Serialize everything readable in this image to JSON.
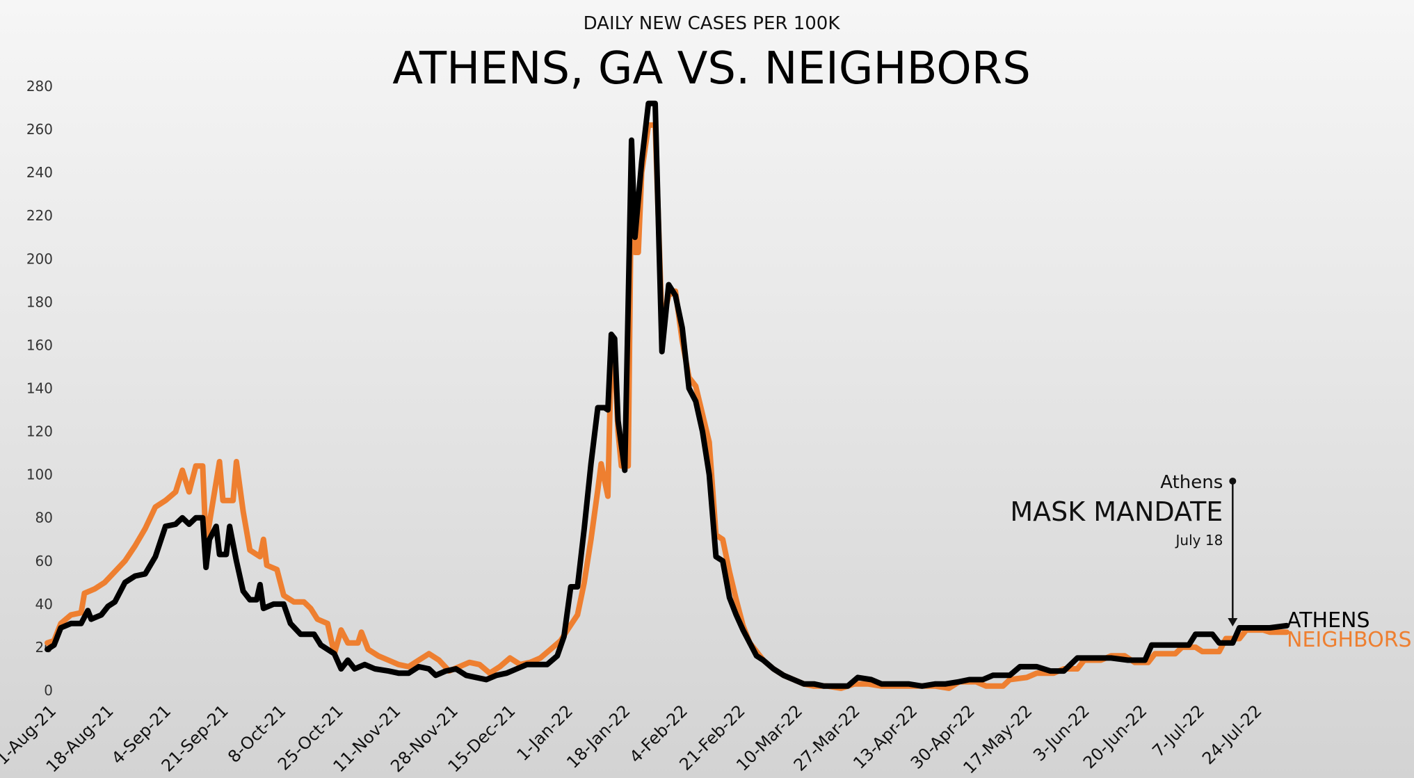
{
  "chart_data": {
    "type": "line",
    "subtitle": "DAILY NEW CASES PER 100K",
    "title": "ATHENS, GA VS. NEIGHBORS",
    "xlabel": "",
    "ylabel": "",
    "ylim": [
      0,
      280
    ],
    "yticks": [
      0,
      20,
      40,
      60,
      80,
      100,
      120,
      140,
      160,
      180,
      200,
      220,
      240,
      260,
      280
    ],
    "xtick_labels": [
      "1-Aug-21",
      "18-Aug-21",
      "4-Sep-21",
      "21-Sep-21",
      "8-Oct-21",
      "25-Oct-21",
      "11-Nov-21",
      "28-Nov-21",
      "15-Dec-21",
      "1-Jan-22",
      "18-Jan-22",
      "4-Feb-22",
      "21-Feb-22",
      "10-Mar-22",
      "27-Mar-22",
      "13-Apr-22",
      "30-Apr-22",
      "17-May-22",
      "3-Jun-22",
      "20-Jun-22",
      "7-Jul-22",
      "24-Jul-22"
    ],
    "x_start": "2021-08-01",
    "x_end": "2022-08-03",
    "grid": false,
    "legend": "direct labels at right end of lines",
    "series": [
      {
        "name": "ATHENS",
        "color": "#000000",
        "points": [
          [
            "2021-08-01",
            19
          ],
          [
            "2021-08-03",
            21
          ],
          [
            "2021-08-05",
            29
          ],
          [
            "2021-08-08",
            31
          ],
          [
            "2021-08-11",
            31
          ],
          [
            "2021-08-13",
            37
          ],
          [
            "2021-08-14",
            33
          ],
          [
            "2021-08-17",
            35
          ],
          [
            "2021-08-19",
            39
          ],
          [
            "2021-08-21",
            41
          ],
          [
            "2021-08-24",
            50
          ],
          [
            "2021-08-27",
            53
          ],
          [
            "2021-08-30",
            54
          ],
          [
            "2021-09-02",
            62
          ],
          [
            "2021-09-05",
            76
          ],
          [
            "2021-09-08",
            77
          ],
          [
            "2021-09-10",
            80
          ],
          [
            "2021-09-12",
            77
          ],
          [
            "2021-09-14",
            80
          ],
          [
            "2021-09-16",
            80
          ],
          [
            "2021-09-17",
            57
          ],
          [
            "2021-09-18",
            70
          ],
          [
            "2021-09-20",
            76
          ],
          [
            "2021-09-21",
            63
          ],
          [
            "2021-09-23",
            63
          ],
          [
            "2021-09-24",
            76
          ],
          [
            "2021-09-26",
            60
          ],
          [
            "2021-09-28",
            46
          ],
          [
            "2021-09-30",
            42
          ],
          [
            "2021-10-02",
            42
          ],
          [
            "2021-10-03",
            49
          ],
          [
            "2021-10-04",
            38
          ],
          [
            "2021-10-07",
            40
          ],
          [
            "2021-10-10",
            40
          ],
          [
            "2021-10-12",
            31
          ],
          [
            "2021-10-15",
            26
          ],
          [
            "2021-10-19",
            26
          ],
          [
            "2021-10-21",
            21
          ],
          [
            "2021-10-23",
            19
          ],
          [
            "2021-10-25",
            17
          ],
          [
            "2021-10-27",
            10
          ],
          [
            "2021-10-29",
            14
          ],
          [
            "2021-10-31",
            10
          ],
          [
            "2021-11-03",
            12
          ],
          [
            "2021-11-06",
            10
          ],
          [
            "2021-11-10",
            9
          ],
          [
            "2021-11-13",
            8
          ],
          [
            "2021-11-16",
            8
          ],
          [
            "2021-11-19",
            11
          ],
          [
            "2021-11-22",
            10
          ],
          [
            "2021-11-24",
            7
          ],
          [
            "2021-11-27",
            9
          ],
          [
            "2021-11-30",
            10
          ],
          [
            "2021-12-03",
            7
          ],
          [
            "2021-12-06",
            6
          ],
          [
            "2021-12-09",
            5
          ],
          [
            "2021-12-12",
            7
          ],
          [
            "2021-12-15",
            8
          ],
          [
            "2021-12-18",
            10
          ],
          [
            "2021-12-21",
            12
          ],
          [
            "2021-12-24",
            12
          ],
          [
            "2021-12-27",
            12
          ],
          [
            "2021-12-30",
            16
          ],
          [
            "2022-01-01",
            25
          ],
          [
            "2022-01-03",
            48
          ],
          [
            "2022-01-05",
            48
          ],
          [
            "2022-01-07",
            75
          ],
          [
            "2022-01-09",
            105
          ],
          [
            "2022-01-11",
            131
          ],
          [
            "2022-01-13",
            131
          ],
          [
            "2022-01-14",
            130
          ],
          [
            "2022-01-15",
            165
          ],
          [
            "2022-01-16",
            163
          ],
          [
            "2022-01-17",
            125
          ],
          [
            "2022-01-19",
            102
          ],
          [
            "2022-01-21",
            255
          ],
          [
            "2022-01-22",
            210
          ],
          [
            "2022-01-24",
            245
          ],
          [
            "2022-01-26",
            272
          ],
          [
            "2022-01-28",
            272
          ],
          [
            "2022-01-30",
            157
          ],
          [
            "2022-02-01",
            188
          ],
          [
            "2022-02-03",
            183
          ],
          [
            "2022-02-05",
            168
          ],
          [
            "2022-02-07",
            140
          ],
          [
            "2022-02-09",
            134
          ],
          [
            "2022-02-11",
            120
          ],
          [
            "2022-02-13",
            100
          ],
          [
            "2022-02-15",
            62
          ],
          [
            "2022-02-17",
            60
          ],
          [
            "2022-02-19",
            43
          ],
          [
            "2022-02-21",
            35
          ],
          [
            "2022-02-23",
            28
          ],
          [
            "2022-02-25",
            22
          ],
          [
            "2022-02-27",
            16
          ],
          [
            "2022-03-01",
            14
          ],
          [
            "2022-03-04",
            10
          ],
          [
            "2022-03-07",
            7
          ],
          [
            "2022-03-10",
            5
          ],
          [
            "2022-03-13",
            3
          ],
          [
            "2022-03-16",
            3
          ],
          [
            "2022-03-19",
            2
          ],
          [
            "2022-03-22",
            2
          ],
          [
            "2022-03-26",
            2
          ],
          [
            "2022-03-29",
            6
          ],
          [
            "2022-04-02",
            5
          ],
          [
            "2022-04-05",
            3
          ],
          [
            "2022-04-09",
            3
          ],
          [
            "2022-04-13",
            3
          ],
          [
            "2022-04-17",
            2
          ],
          [
            "2022-04-21",
            3
          ],
          [
            "2022-04-24",
            3
          ],
          [
            "2022-04-28",
            4
          ],
          [
            "2022-05-01",
            5
          ],
          [
            "2022-05-05",
            5
          ],
          [
            "2022-05-08",
            7
          ],
          [
            "2022-05-13",
            7
          ],
          [
            "2022-05-16",
            11
          ],
          [
            "2022-05-21",
            11
          ],
          [
            "2022-05-25",
            9
          ],
          [
            "2022-05-29",
            9
          ],
          [
            "2022-06-02",
            15
          ],
          [
            "2022-06-07",
            15
          ],
          [
            "2022-06-12",
            15
          ],
          [
            "2022-06-17",
            14
          ],
          [
            "2022-06-22",
            14
          ],
          [
            "2022-06-24",
            21
          ],
          [
            "2022-07-01",
            21
          ],
          [
            "2022-07-05",
            21
          ],
          [
            "2022-07-07",
            26
          ],
          [
            "2022-07-12",
            26
          ],
          [
            "2022-07-14",
            22
          ],
          [
            "2022-07-18",
            22
          ],
          [
            "2022-07-20",
            29
          ],
          [
            "2022-07-25",
            29
          ],
          [
            "2022-07-29",
            29
          ],
          [
            "2022-08-03",
            30
          ]
        ]
      },
      {
        "name": "NEIGHBORS",
        "color": "#ee7f30",
        "points": [
          [
            "2021-08-01",
            22
          ],
          [
            "2021-08-03",
            23
          ],
          [
            "2021-08-05",
            31
          ],
          [
            "2021-08-08",
            35
          ],
          [
            "2021-08-11",
            36
          ],
          [
            "2021-08-12",
            45
          ],
          [
            "2021-08-15",
            47
          ],
          [
            "2021-08-18",
            50
          ],
          [
            "2021-08-21",
            55
          ],
          [
            "2021-08-24",
            60
          ],
          [
            "2021-08-27",
            67
          ],
          [
            "2021-08-30",
            75
          ],
          [
            "2021-09-02",
            85
          ],
          [
            "2021-09-05",
            88
          ],
          [
            "2021-09-08",
            92
          ],
          [
            "2021-09-10",
            102
          ],
          [
            "2021-09-12",
            92
          ],
          [
            "2021-09-14",
            104
          ],
          [
            "2021-09-16",
            104
          ],
          [
            "2021-09-17",
            68
          ],
          [
            "2021-09-19",
            87
          ],
          [
            "2021-09-21",
            106
          ],
          [
            "2021-09-22",
            88
          ],
          [
            "2021-09-25",
            88
          ],
          [
            "2021-09-26",
            106
          ],
          [
            "2021-09-28",
            83
          ],
          [
            "2021-09-30",
            65
          ],
          [
            "2021-10-03",
            62
          ],
          [
            "2021-10-04",
            70
          ],
          [
            "2021-10-05",
            58
          ],
          [
            "2021-10-08",
            56
          ],
          [
            "2021-10-10",
            44
          ],
          [
            "2021-10-13",
            41
          ],
          [
            "2021-10-16",
            41
          ],
          [
            "2021-10-18",
            38
          ],
          [
            "2021-10-20",
            33
          ],
          [
            "2021-10-23",
            31
          ],
          [
            "2021-10-25",
            17
          ],
          [
            "2021-10-27",
            28
          ],
          [
            "2021-10-29",
            22
          ],
          [
            "2021-11-01",
            22
          ],
          [
            "2021-11-02",
            27
          ],
          [
            "2021-11-04",
            19
          ],
          [
            "2021-11-07",
            16
          ],
          [
            "2021-11-10",
            14
          ],
          [
            "2021-11-13",
            12
          ],
          [
            "2021-11-16",
            11
          ],
          [
            "2021-11-19",
            14
          ],
          [
            "2021-11-22",
            17
          ],
          [
            "2021-11-25",
            14
          ],
          [
            "2021-11-28",
            9
          ],
          [
            "2021-12-01",
            11
          ],
          [
            "2021-12-04",
            13
          ],
          [
            "2021-12-07",
            12
          ],
          [
            "2021-12-10",
            8
          ],
          [
            "2021-12-13",
            11
          ],
          [
            "2021-12-16",
            15
          ],
          [
            "2021-12-19",
            12
          ],
          [
            "2021-12-22",
            13
          ],
          [
            "2021-12-25",
            15
          ],
          [
            "2021-12-28",
            19
          ],
          [
            "2021-12-31",
            23
          ],
          [
            "2022-01-02",
            28
          ],
          [
            "2022-01-05",
            35
          ],
          [
            "2022-01-07",
            50
          ],
          [
            "2022-01-09",
            70
          ],
          [
            "2022-01-11",
            93
          ],
          [
            "2022-01-12",
            105
          ],
          [
            "2022-01-14",
            90
          ],
          [
            "2022-01-15",
            158
          ],
          [
            "2022-01-16",
            153
          ],
          [
            "2022-01-17",
            120
          ],
          [
            "2022-01-18",
            104
          ],
          [
            "2022-01-20",
            104
          ],
          [
            "2022-01-21",
            243
          ],
          [
            "2022-01-22",
            203
          ],
          [
            "2022-01-23",
            203
          ],
          [
            "2022-01-24",
            240
          ],
          [
            "2022-01-26",
            262
          ],
          [
            "2022-01-28",
            262
          ],
          [
            "2022-01-30",
            170
          ],
          [
            "2022-02-01",
            183
          ],
          [
            "2022-02-03",
            185
          ],
          [
            "2022-02-05",
            162
          ],
          [
            "2022-02-07",
            145
          ],
          [
            "2022-02-09",
            141
          ],
          [
            "2022-02-11",
            128
          ],
          [
            "2022-02-13",
            115
          ],
          [
            "2022-02-15",
            72
          ],
          [
            "2022-02-17",
            70
          ],
          [
            "2022-02-19",
            55
          ],
          [
            "2022-02-21",
            42
          ],
          [
            "2022-02-23",
            30
          ],
          [
            "2022-02-25",
            22
          ],
          [
            "2022-02-27",
            18
          ],
          [
            "2022-03-01",
            14
          ],
          [
            "2022-03-04",
            10
          ],
          [
            "2022-03-07",
            7
          ],
          [
            "2022-03-10",
            5
          ],
          [
            "2022-03-13",
            3
          ],
          [
            "2022-03-16",
            2
          ],
          [
            "2022-03-20",
            2
          ],
          [
            "2022-03-24",
            1
          ],
          [
            "2022-03-28",
            3
          ],
          [
            "2022-04-01",
            3
          ],
          [
            "2022-04-05",
            2
          ],
          [
            "2022-04-09",
            2
          ],
          [
            "2022-04-13",
            2
          ],
          [
            "2022-04-17",
            2
          ],
          [
            "2022-04-21",
            2
          ],
          [
            "2022-04-25",
            1
          ],
          [
            "2022-04-28",
            4
          ],
          [
            "2022-05-03",
            4
          ],
          [
            "2022-05-06",
            2
          ],
          [
            "2022-05-11",
            2
          ],
          [
            "2022-05-13",
            5
          ],
          [
            "2022-05-18",
            6
          ],
          [
            "2022-05-21",
            8
          ],
          [
            "2022-05-26",
            8
          ],
          [
            "2022-05-29",
            10
          ],
          [
            "2022-06-02",
            10
          ],
          [
            "2022-06-04",
            14
          ],
          [
            "2022-06-09",
            14
          ],
          [
            "2022-06-12",
            16
          ],
          [
            "2022-06-16",
            16
          ],
          [
            "2022-06-19",
            13
          ],
          [
            "2022-06-23",
            13
          ],
          [
            "2022-06-25",
            17
          ],
          [
            "2022-07-01",
            17
          ],
          [
            "2022-07-03",
            20
          ],
          [
            "2022-07-07",
            20
          ],
          [
            "2022-07-09",
            18
          ],
          [
            "2022-07-14",
            18
          ],
          [
            "2022-07-16",
            24
          ],
          [
            "2022-07-20",
            24
          ],
          [
            "2022-07-22",
            28
          ],
          [
            "2022-07-27",
            28
          ],
          [
            "2022-07-29",
            27
          ],
          [
            "2022-08-03",
            27
          ]
        ]
      }
    ],
    "annotation": {
      "line1": "Athens",
      "line2": "MASK MANDATE",
      "line3": "July 18",
      "date": "2022-07-18",
      "top_value": 97,
      "bottom_value": 29
    }
  }
}
